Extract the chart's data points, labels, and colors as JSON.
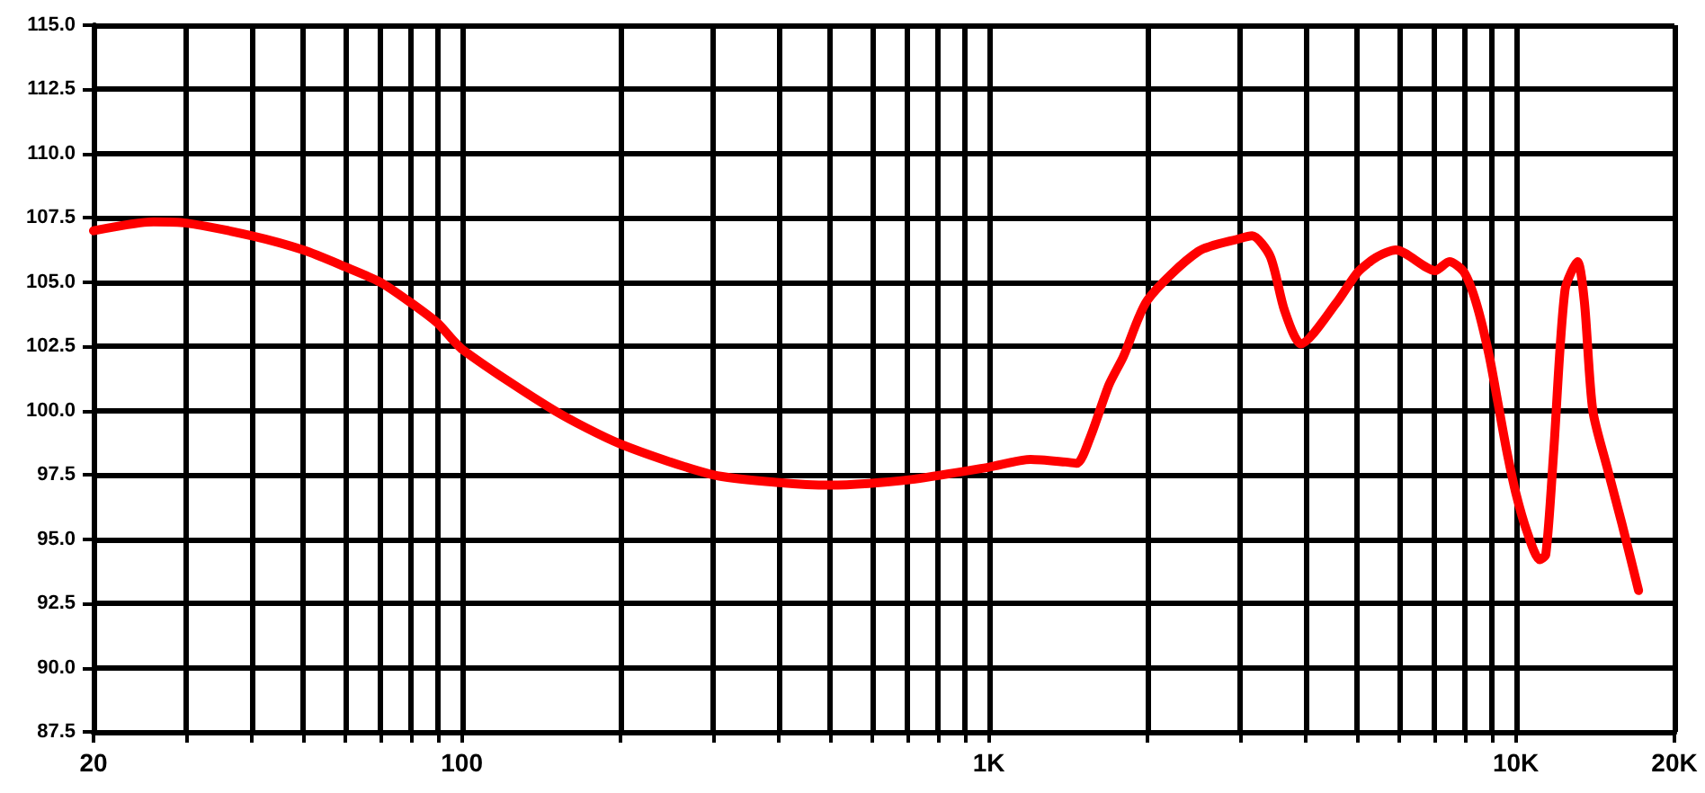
{
  "chart_data": {
    "type": "line",
    "x": [
      20,
      26,
      30,
      40,
      50,
      60,
      70,
      80,
      90,
      100,
      150,
      200,
      300,
      400,
      500,
      700,
      1000,
      1200,
      1400,
      1470,
      1560,
      1690,
      1800,
      2000,
      2500,
      3000,
      3160,
      3420,
      3640,
      3910,
      4570,
      5020,
      5470,
      5920,
      7030,
      7480,
      7970,
      8410,
      8890,
      9250,
      9620,
      10000,
      10500,
      11100,
      11400,
      11800,
      12400,
      13100,
      13500,
      14000,
      14900,
      15900,
      17100
    ],
    "series": [
      {
        "color": "#ff0000",
        "values": [
          107.0,
          107.35,
          107.3,
          106.8,
          106.25,
          105.6,
          105.0,
          104.2,
          103.4,
          102.4,
          100.0,
          98.7,
          97.5,
          97.2,
          97.1,
          97.3,
          97.8,
          98.1,
          98.0,
          97.95,
          99.0,
          101.0,
          102.1,
          104.3,
          106.2,
          106.7,
          106.8,
          106.0,
          103.9,
          102.6,
          104.2,
          105.4,
          106.0,
          106.25,
          105.45,
          105.8,
          105.4,
          104.2,
          102.2,
          100.3,
          98.4,
          96.8,
          95.3,
          94.2,
          94.4,
          98.4,
          104.7,
          105.8,
          104.2,
          100.0,
          97.8,
          95.6,
          93.0
        ]
      }
    ],
    "xlim": [
      20,
      20000
    ],
    "ylim": [
      87.5,
      115
    ],
    "xticks": [
      20,
      {
        "value": 30,
        "label": null
      },
      {
        "value": 40,
        "label": null
      },
      {
        "value": 50,
        "label": null
      },
      {
        "value": 60,
        "label": null
      },
      {
        "value": 70,
        "label": null
      },
      {
        "value": 80,
        "label": null
      },
      {
        "value": 90,
        "label": null
      },
      100,
      {
        "value": 200,
        "label": null
      },
      {
        "value": 300,
        "label": null
      },
      {
        "value": 400,
        "label": null
      },
      {
        "value": 500,
        "label": null
      },
      {
        "value": 600,
        "label": null
      },
      {
        "value": 700,
        "label": null
      },
      {
        "value": 800,
        "label": null
      },
      {
        "value": 900,
        "label": null
      },
      {
        "value": 1000,
        "label": "1K"
      },
      {
        "value": 2000,
        "label": null
      },
      {
        "value": 3000,
        "label": null
      },
      {
        "value": 4000,
        "label": null
      },
      {
        "value": 5000,
        "label": null
      },
      {
        "value": 6000,
        "label": null
      },
      {
        "value": 7000,
        "label": null
      },
      {
        "value": 8000,
        "label": null
      },
      {
        "value": 9000,
        "label": null
      },
      {
        "value": 10000,
        "label": "10K"
      },
      {
        "value": 20000,
        "label": "20K"
      }
    ],
    "yticks": [
      {
        "value": 87.5,
        "label": "87.5"
      },
      {
        "value": 90,
        "label": "90.0"
      },
      {
        "value": 92.5,
        "label": "92.5"
      },
      {
        "value": 95,
        "label": "95.0"
      },
      {
        "value": 97.5,
        "label": "97.5"
      },
      {
        "value": 100,
        "label": "100.0"
      },
      {
        "value": 102.5,
        "label": "102.5"
      },
      {
        "value": 105,
        "label": "105.0"
      },
      {
        "value": 107.5,
        "label": "107.5"
      },
      {
        "value": 110,
        "label": "110.0"
      },
      {
        "value": 112.5,
        "label": "112.5"
      },
      {
        "value": 115,
        "label": "115.0"
      }
    ],
    "log": "x",
    "grid": true,
    "marker": "none",
    "line_style": "solid"
  }
}
